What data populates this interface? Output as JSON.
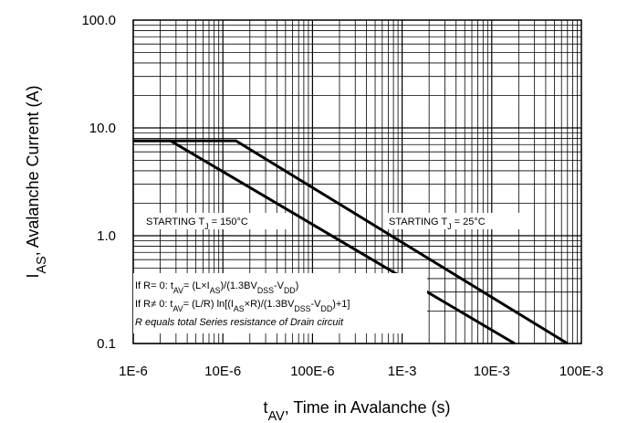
{
  "chart_data": {
    "type": "line",
    "x_scale": "log",
    "y_scale": "log",
    "xlim": [
      1e-06,
      0.1
    ],
    "ylim": [
      0.1,
      100
    ],
    "grid": true,
    "legend": "none",
    "x_ticks": [
      {
        "value": 1e-06,
        "label": "1E-6"
      },
      {
        "value": 1e-05,
        "label": "10E-6"
      },
      {
        "value": 0.0001,
        "label": "100E-6"
      },
      {
        "value": 0.001,
        "label": "1E-3"
      },
      {
        "value": 0.01,
        "label": "10E-3"
      },
      {
        "value": 0.1,
        "label": "100E-3"
      }
    ],
    "y_ticks": [
      {
        "value": 0.1,
        "label": "0.1"
      },
      {
        "value": 1,
        "label": "1.0"
      },
      {
        "value": 10,
        "label": "10.0"
      },
      {
        "value": 100,
        "label": "100.0"
      }
    ],
    "xlabel": {
      "main": "t",
      "sub": "AV",
      "rest": ", Time in Avalanche (s)"
    },
    "ylabel": {
      "main": "I",
      "sub": "AS",
      "rest": ", Avalanche Current (A)"
    },
    "series": [
      {
        "label_parts": [
          "STARTING T",
          "J",
          " = 150°C"
        ],
        "points": [
          [
            1e-06,
            7.6
          ],
          [
            2.6e-06,
            7.6
          ],
          [
            0.018,
            0.1
          ]
        ]
      },
      {
        "label_parts": [
          "STARTING T",
          "J",
          " = 25°C"
        ],
        "points": [
          [
            1e-06,
            7.6
          ],
          [
            1.4e-05,
            7.6
          ],
          [
            0.07,
            0.1
          ]
        ]
      }
    ],
    "annotations": {
      "line1": [
        "If R= 0: t",
        "AV",
        "= (L×I",
        "AS",
        ")/(1.3BV",
        "DSS",
        "-V",
        "DD",
        ")"
      ],
      "line2": [
        "If R≠ 0: t",
        "AV",
        "= (L/R) ln[(I",
        "AS",
        "×R)/(1.3BV",
        "DSS",
        "-V",
        "DD",
        ")+1]"
      ],
      "line3": "R equals total Series resistance of Drain circuit"
    }
  }
}
